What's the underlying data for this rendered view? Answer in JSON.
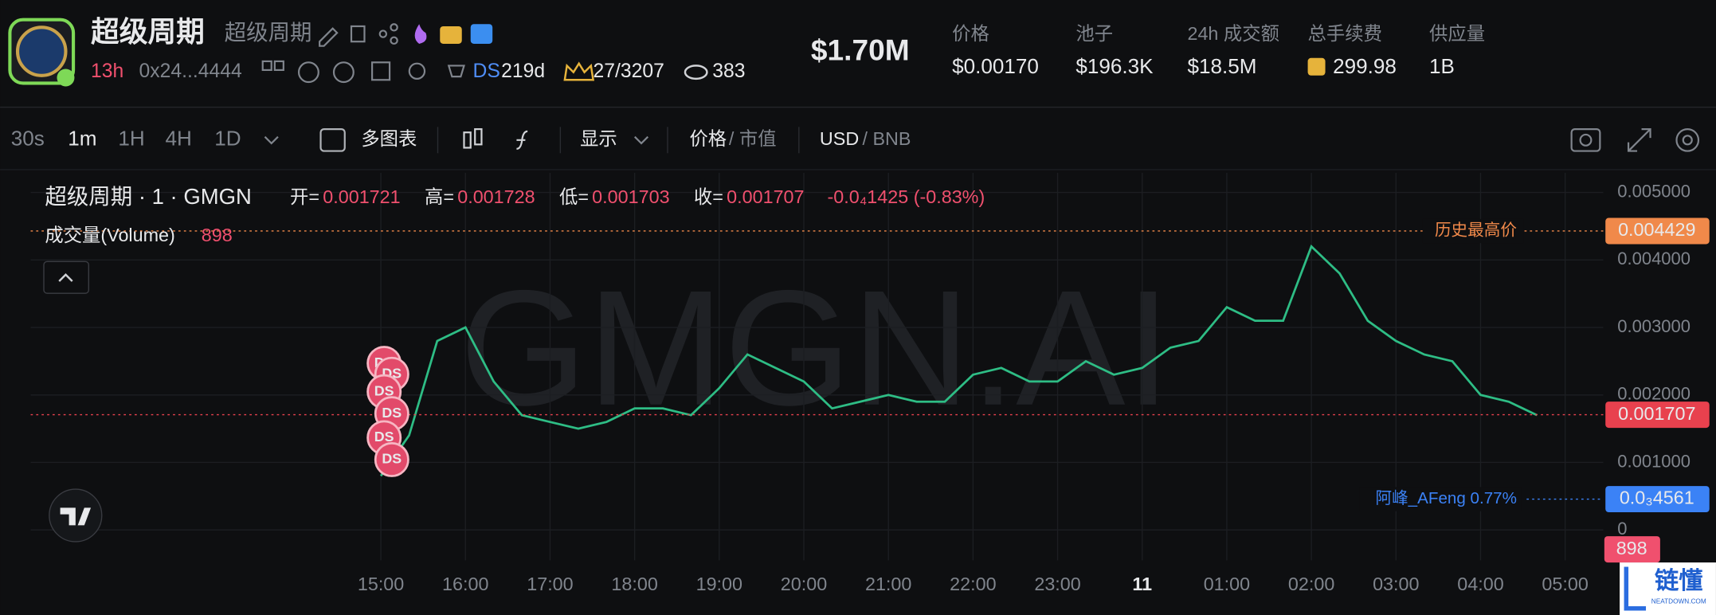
{
  "header": {
    "name": "超级周期",
    "alias": "超级周期",
    "age": "13h",
    "address": "0x24...4444",
    "ds": "DS",
    "ds_age": "219d",
    "holders": "27/3207",
    "views": "383",
    "market_cap": "$1.70M",
    "stats": [
      {
        "label": "价格",
        "value": "$0.00170"
      },
      {
        "label": "池子",
        "value": "$196.3K"
      },
      {
        "label": "24h 成交额",
        "value": "$18.5M"
      },
      {
        "label": "总手续费",
        "value": "299.98"
      },
      {
        "label": "供应量",
        "value": "1B"
      }
    ]
  },
  "toolbar": {
    "intervals": [
      "30s",
      "1m",
      "1H",
      "4H",
      "1D"
    ],
    "multi_chart": "多图表",
    "display": "显示",
    "price": "价格",
    "mcap": "/ 市值",
    "usd": "USD",
    "bnb": "/ BNB"
  },
  "legend": {
    "title": "超级周期 · 1 · GMGN",
    "ohlc": [
      {
        "label": "开=",
        "value": "0.001721"
      },
      {
        "label": "高=",
        "value": "0.001728"
      },
      {
        "label": "低=",
        "value": "0.001703"
      },
      {
        "label": "收=",
        "value": "0.001707"
      }
    ],
    "change": "-0.0₄1425 (-0.83%)",
    "volume_label": "成交量(Volume)",
    "volume_value": "898"
  },
  "trade_markers": [
    "DS",
    "DS",
    "DS",
    "DS",
    "DS",
    "DS"
  ],
  "logo": {
    "text": "链懂",
    "sub": "NEATDOWN.COM"
  },
  "chart_data": {
    "type": "line",
    "watermark": "GMGN.AI",
    "x": [
      "15:00",
      "15:20",
      "15:40",
      "16:00",
      "16:20",
      "16:40",
      "17:00",
      "17:20",
      "17:40",
      "18:00",
      "18:20",
      "18:40",
      "19:00",
      "19:20",
      "19:40",
      "20:00",
      "20:20",
      "20:40",
      "21:00",
      "21:20",
      "21:40",
      "22:00",
      "22:20",
      "22:40",
      "23:00",
      "23:20",
      "23:40",
      "00:00",
      "00:20",
      "00:40",
      "01:00",
      "01:20",
      "01:40",
      "02:00",
      "02:20",
      "02:40",
      "03:00",
      "03:20",
      "03:40",
      "04:00",
      "04:20",
      "04:40"
    ],
    "series": [
      {
        "name": "超级周期",
        "color": "#2ebd85",
        "values": [
          0.0008,
          0.0014,
          0.0028,
          0.003,
          0.0022,
          0.0017,
          0.0016,
          0.0015,
          0.0016,
          0.0018,
          0.0018,
          0.0017,
          0.0021,
          0.0026,
          0.0024,
          0.0022,
          0.0018,
          0.0019,
          0.002,
          0.0019,
          0.0019,
          0.0023,
          0.0024,
          0.0022,
          0.0022,
          0.0025,
          0.0023,
          0.0024,
          0.0027,
          0.0028,
          0.0033,
          0.0031,
          0.0031,
          0.0042,
          0.0038,
          0.0031,
          0.0028,
          0.0026,
          0.0025,
          0.002,
          0.0019,
          0.0017
        ]
      }
    ],
    "ylim": [
      -0.00045,
      0.00529
    ],
    "yticks": [
      0,
      {
        "value": 0.001,
        "label": "0.001000"
      },
      {
        "value": 0.002,
        "label": "0.002000"
      },
      {
        "value": 0.003,
        "label": "0.003000"
      },
      {
        "value": 0.004,
        "label": "0.004000"
      },
      {
        "value": 0.005,
        "label": "0.005000"
      }
    ],
    "xticks": [
      "15:00",
      "16:00",
      "17:00",
      "18:00",
      "19:00",
      "20:00",
      "21:00",
      "22:00",
      "23:00",
      {
        "value": "00:00",
        "label": "11"
      },
      "01:00",
      "02:00",
      "03:00",
      "04:00",
      "05:00"
    ],
    "grid": true,
    "markers": [
      {
        "value": 0.004429,
        "label": "0.004429",
        "note": "历史最高价",
        "color": "#f0894a"
      },
      {
        "value": 0.001707,
        "label": "0.001707",
        "color": "#e8414e"
      },
      {
        "value": 0.0004561,
        "label": "0.0₃4561",
        "note": "阿峰_AFeng 0.77%",
        "color": "#3b82f6"
      }
    ]
  }
}
